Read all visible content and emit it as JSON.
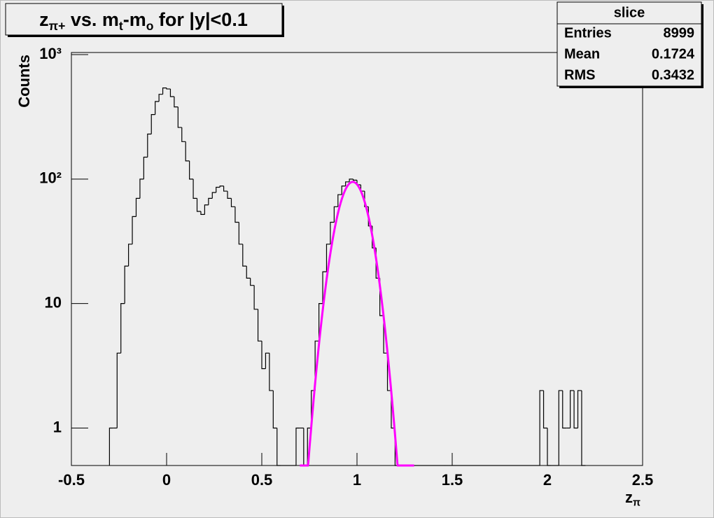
{
  "chart_data": {
    "type": "histogram",
    "title": [
      {
        "text": "z"
      },
      {
        "text": "π+",
        "sub": true
      },
      {
        "text": " vs. m"
      },
      {
        "text": "t",
        "sub": true
      },
      {
        "text": "-m"
      },
      {
        "text": "o",
        "sub": true
      },
      {
        "text": " for |y|<0.1"
      }
    ],
    "x_label": [
      {
        "text": "z"
      },
      {
        "text": "π",
        "sub": true
      }
    ],
    "y_label": "Counts",
    "log_y": true,
    "color": "#000000",
    "xlim": [
      -0.5,
      2.5
    ],
    "xticks": [
      -0.5,
      0,
      0.5,
      1,
      1.5,
      2,
      2.5
    ],
    "ylim": [
      0.5,
      1040
    ],
    "yticks": [
      1,
      10,
      {
        "value": 100,
        "label": "10²"
      },
      {
        "value": 1000,
        "label": "10³"
      }
    ],
    "bins": [
      -0.3,
      -0.28,
      -0.26,
      -0.24,
      -0.22,
      -0.2,
      -0.18,
      -0.16,
      -0.14,
      -0.12,
      -0.1,
      -0.08,
      -0.06,
      -0.04,
      -0.02,
      0,
      0.02,
      0.04,
      0.06,
      0.08,
      0.1,
      0.12,
      0.14,
      0.16,
      0.18,
      0.2,
      0.22,
      0.24,
      0.26,
      0.28,
      0.3,
      0.32,
      0.34,
      0.36,
      0.38,
      0.4,
      0.42,
      0.44,
      0.46,
      0.48,
      0.5,
      0.52,
      0.54,
      0.56,
      0.58,
      0.6,
      0.62,
      0.64,
      0.66,
      0.68,
      0.7,
      0.72,
      0.74,
      0.76,
      0.78,
      0.8,
      0.82,
      0.84,
      0.86,
      0.88,
      0.9,
      0.92,
      0.94,
      0.96,
      0.98,
      1,
      1.02,
      1.04,
      1.06,
      1.08,
      1.1,
      1.12,
      1.14,
      1.16,
      1.18,
      1.2,
      1.22,
      1.24,
      1.26,
      1.28,
      1.3,
      1.32,
      1.34,
      1.36,
      1.38,
      1.4,
      1.42,
      1.44,
      1.46,
      1.48,
      1.5,
      1.52,
      1.54,
      1.56,
      1.58,
      1.6,
      1.62,
      1.64,
      1.66,
      1.68,
      1.7,
      1.72,
      1.74,
      1.76,
      1.78,
      1.8,
      1.82,
      1.84,
      1.86,
      1.88,
      1.9,
      1.92,
      1.94,
      1.96,
      1.98,
      2,
      2.02,
      2.04,
      2.06,
      2.08,
      2.1,
      2.12,
      2.14,
      2.16,
      2.18,
      2.2
    ],
    "counts": [
      1,
      1,
      4,
      10,
      20,
      30,
      50,
      70,
      100,
      150,
      230,
      330,
      420,
      480,
      540,
      530,
      460,
      380,
      260,
      200,
      140,
      100,
      70,
      55,
      52,
      62,
      70,
      78,
      86,
      88,
      80,
      70,
      60,
      45,
      30,
      20,
      16,
      14,
      9,
      5,
      3,
      4,
      2,
      1,
      0,
      0,
      0,
      0,
      0,
      1,
      1,
      0,
      1,
      2,
      5,
      10,
      18,
      30,
      45,
      60,
      75,
      88,
      95,
      100,
      98,
      90,
      80,
      60,
      42,
      28,
      16,
      8,
      4,
      2,
      1,
      0,
      0,
      0,
      0,
      0,
      0,
      0,
      0,
      0,
      0,
      0,
      0,
      0,
      0,
      0,
      0,
      0,
      0,
      0,
      0,
      0,
      0,
      0,
      0,
      0,
      0,
      0,
      0,
      0,
      0,
      0,
      0,
      0,
      0,
      0,
      0,
      0,
      0,
      2,
      1,
      0,
      0,
      0,
      2,
      1,
      1,
      2,
      1,
      2,
      0
    ],
    "fit": {
      "type": "gaussian",
      "constant": 95,
      "mean": 0.978,
      "sigma": 0.0725,
      "range": [
        0.7,
        1.3
      ],
      "color": "#ff00ff"
    },
    "stats": {
      "name": "slice",
      "rows": [
        {
          "label": "Entries",
          "value": 8999
        },
        {
          "label": "Mean",
          "value": 0.1724
        },
        {
          "label": "RMS",
          "value": 0.3432
        }
      ]
    }
  }
}
